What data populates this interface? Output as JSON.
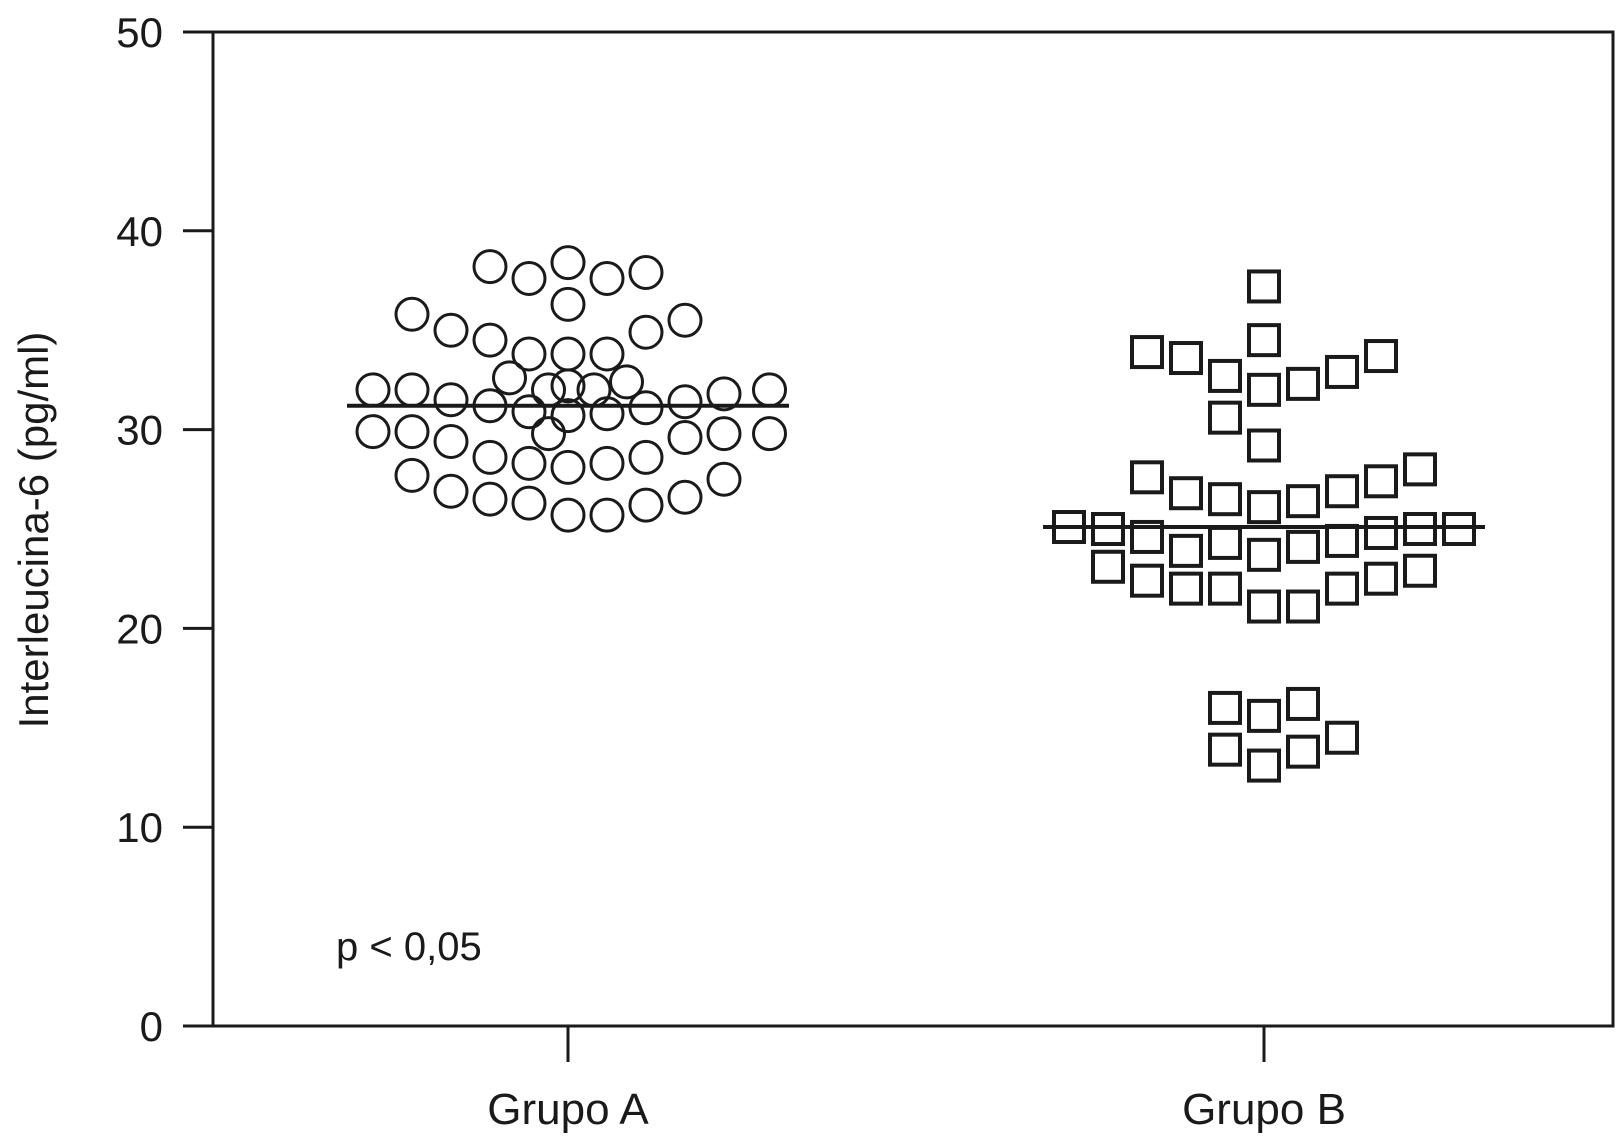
{
  "chart_data": {
    "type": "scatter",
    "title": "",
    "xlabel": "",
    "ylabel": "Interleucina-6 (pg/ml)",
    "ylim": [
      0,
      50
    ],
    "yticks": [
      0,
      10,
      20,
      30,
      40,
      50
    ],
    "categories": [
      "Grupo A",
      "Grupo B"
    ],
    "annotation": "p < 0,05",
    "grid": false,
    "legend": "none",
    "colors": {
      "ink": "#1a1a1a",
      "background": "#ffffff"
    },
    "series": [
      {
        "category": "Grupo A",
        "marker": "circle",
        "mean": 31.2,
        "points": [
          {
            "offset": -0.3,
            "y": 32.0
          },
          {
            "offset": -0.3,
            "y": 29.9
          },
          {
            "offset": -0.24,
            "y": 35.8
          },
          {
            "offset": -0.24,
            "y": 32.0
          },
          {
            "offset": -0.24,
            "y": 29.9
          },
          {
            "offset": -0.24,
            "y": 27.7
          },
          {
            "offset": -0.18,
            "y": 35.0
          },
          {
            "offset": -0.18,
            "y": 31.5
          },
          {
            "offset": -0.18,
            "y": 29.4
          },
          {
            "offset": -0.18,
            "y": 26.9
          },
          {
            "offset": -0.12,
            "y": 38.2
          },
          {
            "offset": -0.12,
            "y": 34.5
          },
          {
            "offset": -0.12,
            "y": 31.2
          },
          {
            "offset": -0.12,
            "y": 28.6
          },
          {
            "offset": -0.12,
            "y": 26.5
          },
          {
            "offset": -0.09,
            "y": 32.6
          },
          {
            "offset": -0.06,
            "y": 37.6
          },
          {
            "offset": -0.06,
            "y": 33.8
          },
          {
            "offset": -0.06,
            "y": 30.9
          },
          {
            "offset": -0.06,
            "y": 28.3
          },
          {
            "offset": -0.06,
            "y": 26.3
          },
          {
            "offset": -0.03,
            "y": 32.0
          },
          {
            "offset": -0.03,
            "y": 29.8
          },
          {
            "offset": 0.0,
            "y": 38.4
          },
          {
            "offset": 0.0,
            "y": 36.3
          },
          {
            "offset": 0.0,
            "y": 33.8
          },
          {
            "offset": 0.0,
            "y": 32.2
          },
          {
            "offset": 0.0,
            "y": 30.7
          },
          {
            "offset": 0.0,
            "y": 28.1
          },
          {
            "offset": 0.0,
            "y": 25.7
          },
          {
            "offset": 0.04,
            "y": 32.0
          },
          {
            "offset": 0.06,
            "y": 37.6
          },
          {
            "offset": 0.06,
            "y": 33.8
          },
          {
            "offset": 0.06,
            "y": 30.8
          },
          {
            "offset": 0.06,
            "y": 28.3
          },
          {
            "offset": 0.06,
            "y": 25.7
          },
          {
            "offset": 0.09,
            "y": 32.4
          },
          {
            "offset": 0.12,
            "y": 37.9
          },
          {
            "offset": 0.12,
            "y": 34.9
          },
          {
            "offset": 0.12,
            "y": 31.1
          },
          {
            "offset": 0.12,
            "y": 28.6
          },
          {
            "offset": 0.12,
            "y": 26.2
          },
          {
            "offset": 0.18,
            "y": 35.5
          },
          {
            "offset": 0.18,
            "y": 31.4
          },
          {
            "offset": 0.18,
            "y": 29.6
          },
          {
            "offset": 0.18,
            "y": 26.6
          },
          {
            "offset": 0.24,
            "y": 31.8
          },
          {
            "offset": 0.24,
            "y": 29.8
          },
          {
            "offset": 0.24,
            "y": 27.5
          },
          {
            "offset": 0.31,
            "y": 32.0
          },
          {
            "offset": 0.31,
            "y": 29.8
          }
        ]
      },
      {
        "category": "Grupo B",
        "marker": "square",
        "mean": 25.1,
        "points": [
          {
            "offset": -0.3,
            "y": 25.1
          },
          {
            "offset": -0.24,
            "y": 25.0
          },
          {
            "offset": -0.24,
            "y": 23.1
          },
          {
            "offset": -0.18,
            "y": 33.9
          },
          {
            "offset": -0.18,
            "y": 27.6
          },
          {
            "offset": -0.18,
            "y": 24.6
          },
          {
            "offset": -0.18,
            "y": 22.4
          },
          {
            "offset": -0.12,
            "y": 33.6
          },
          {
            "offset": -0.12,
            "y": 26.8
          },
          {
            "offset": -0.12,
            "y": 23.9
          },
          {
            "offset": -0.12,
            "y": 22.0
          },
          {
            "offset": -0.06,
            "y": 32.7
          },
          {
            "offset": -0.06,
            "y": 30.6
          },
          {
            "offset": -0.06,
            "y": 26.5
          },
          {
            "offset": -0.06,
            "y": 24.3
          },
          {
            "offset": -0.06,
            "y": 22.0
          },
          {
            "offset": -0.06,
            "y": 16.0
          },
          {
            "offset": -0.06,
            "y": 13.9
          },
          {
            "offset": 0.0,
            "y": 37.2
          },
          {
            "offset": 0.0,
            "y": 34.5
          },
          {
            "offset": 0.0,
            "y": 32.0
          },
          {
            "offset": 0.0,
            "y": 29.2
          },
          {
            "offset": 0.0,
            "y": 26.1
          },
          {
            "offset": 0.0,
            "y": 23.7
          },
          {
            "offset": 0.0,
            "y": 21.1
          },
          {
            "offset": 0.0,
            "y": 15.6
          },
          {
            "offset": 0.0,
            "y": 13.1
          },
          {
            "offset": 0.06,
            "y": 32.3
          },
          {
            "offset": 0.06,
            "y": 26.4
          },
          {
            "offset": 0.06,
            "y": 24.1
          },
          {
            "offset": 0.06,
            "y": 21.1
          },
          {
            "offset": 0.06,
            "y": 16.2
          },
          {
            "offset": 0.06,
            "y": 13.8
          },
          {
            "offset": 0.12,
            "y": 32.9
          },
          {
            "offset": 0.12,
            "y": 26.9
          },
          {
            "offset": 0.12,
            "y": 24.4
          },
          {
            "offset": 0.12,
            "y": 22.0
          },
          {
            "offset": 0.12,
            "y": 14.5
          },
          {
            "offset": 0.18,
            "y": 33.7
          },
          {
            "offset": 0.18,
            "y": 27.4
          },
          {
            "offset": 0.18,
            "y": 24.8
          },
          {
            "offset": 0.18,
            "y": 22.5
          },
          {
            "offset": 0.24,
            "y": 28.0
          },
          {
            "offset": 0.24,
            "y": 25.0
          },
          {
            "offset": 0.24,
            "y": 22.9
          },
          {
            "offset": 0.3,
            "y": 25.0
          }
        ]
      }
    ]
  }
}
